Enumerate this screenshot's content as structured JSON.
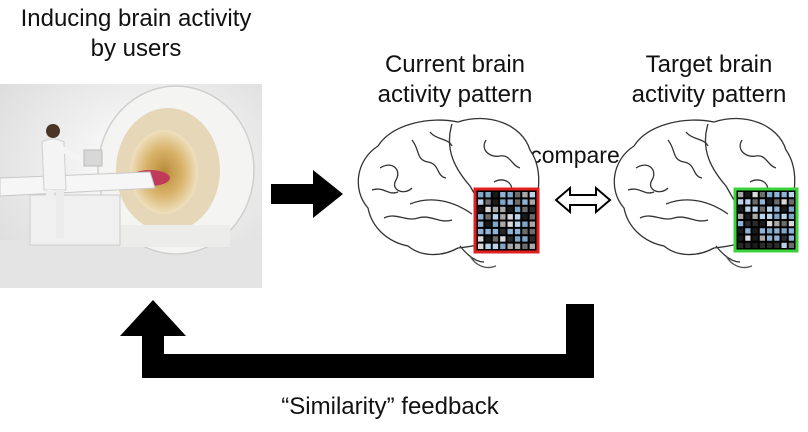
{
  "labels": {
    "inducing": "Inducing brain activity by users",
    "current": "Current brain activity pattern",
    "target": "Target brain activity pattern",
    "compare": "compare",
    "feedback": "“Similarity” feedback"
  },
  "colors": {
    "current_frame": "#e02020",
    "target_frame": "#3cd23c",
    "arrow": "#000000"
  }
}
